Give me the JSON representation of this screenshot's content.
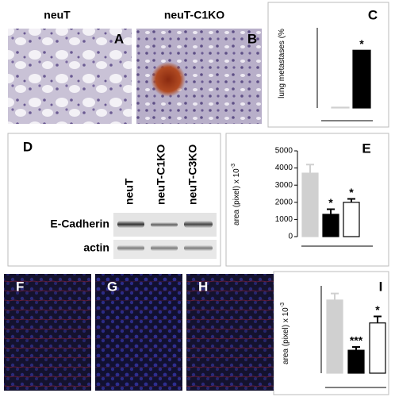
{
  "images": {
    "A": {
      "title": "neuT",
      "label": "A"
    },
    "B": {
      "title": "neuT-C1KO",
      "label": "B"
    }
  },
  "blot": {
    "label": "D",
    "lanes": [
      "neuT",
      "neuT-C1KO",
      "neuT-C3KO"
    ],
    "rows": [
      "E-Cadherin",
      "actin"
    ]
  },
  "fluorescence": [
    "F",
    "G",
    "H"
  ],
  "chart_data": [
    {
      "type": "bar",
      "title": "C",
      "ylabel": "lung metastases (%",
      "values": [
        0.5,
        36
      ],
      "errors": [
        null,
        null
      ],
      "colors": [
        "#d0d0d0",
        "#000000"
      ],
      "annotations": [
        null,
        "*"
      ],
      "ylim": [
        0,
        50
      ]
    },
    {
      "type": "bar",
      "title": "E",
      "ylabel": "area (pixel) x 10",
      "ylabel_exp": "-3",
      "values": [
        3700,
        1300,
        2000
      ],
      "errors": [
        500,
        300,
        200
      ],
      "colors": [
        "#d0d0d0",
        "#000000",
        "#ffffff"
      ],
      "annotations": [
        null,
        "*",
        "*"
      ],
      "ylim": [
        0,
        5000
      ],
      "yticks": [
        0,
        1000,
        2000,
        3000,
        4000,
        5000
      ]
    },
    {
      "type": "bar",
      "title": "I",
      "ylabel": "area (pixel) x 10",
      "ylabel_exp": "-3",
      "values": [
        67,
        21,
        46
      ],
      "errors": [
        6,
        3,
        6
      ],
      "colors": [
        "#d0d0d0",
        "#000000",
        "#ffffff"
      ],
      "annotations": [
        null,
        "***",
        "*"
      ],
      "ylim": [
        0,
        80
      ]
    }
  ]
}
